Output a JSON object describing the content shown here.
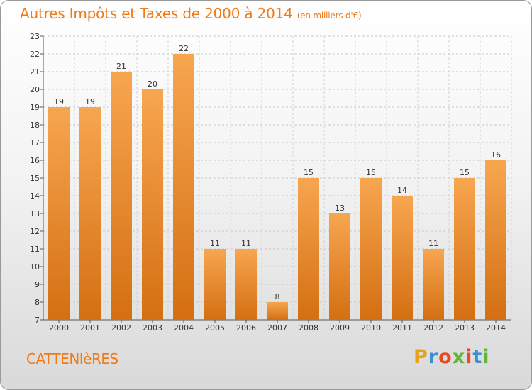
{
  "header": {
    "title": "Autres Impôts et Taxes de 2000 à 2014",
    "subtitle": "(en milliers d'€)"
  },
  "footer": {
    "place": "CATTENIèRES",
    "brand": "Proxiti"
  },
  "colors": {
    "accent": "#ef7b16",
    "bar_light": "#f7a650",
    "bar_dark": "#d46f12",
    "brand_letters": [
      "#e8a21c",
      "#3a8fd0",
      "#e8491d",
      "#64b43c",
      "#e8491d",
      "#3a8fd0",
      "#64b43c"
    ]
  },
  "chart_data": {
    "type": "bar",
    "title": "Autres Impôts et Taxes de 2000 à 2014",
    "subtitle": "(en milliers d'€)",
    "categories": [
      "2000",
      "2001",
      "2002",
      "2003",
      "2004",
      "2005",
      "2006",
      "2007",
      "2008",
      "2009",
      "2010",
      "2011",
      "2012",
      "2013",
      "2014"
    ],
    "values": [
      19,
      19,
      21,
      20,
      22,
      11,
      11,
      8,
      15,
      13,
      15,
      14,
      11,
      15,
      16
    ],
    "ylim": [
      7,
      23
    ],
    "yticks": [
      7,
      8,
      9,
      10,
      11,
      12,
      13,
      14,
      15,
      16,
      17,
      18,
      19,
      20,
      21,
      22,
      23
    ],
    "grid": true,
    "legend": "none"
  }
}
